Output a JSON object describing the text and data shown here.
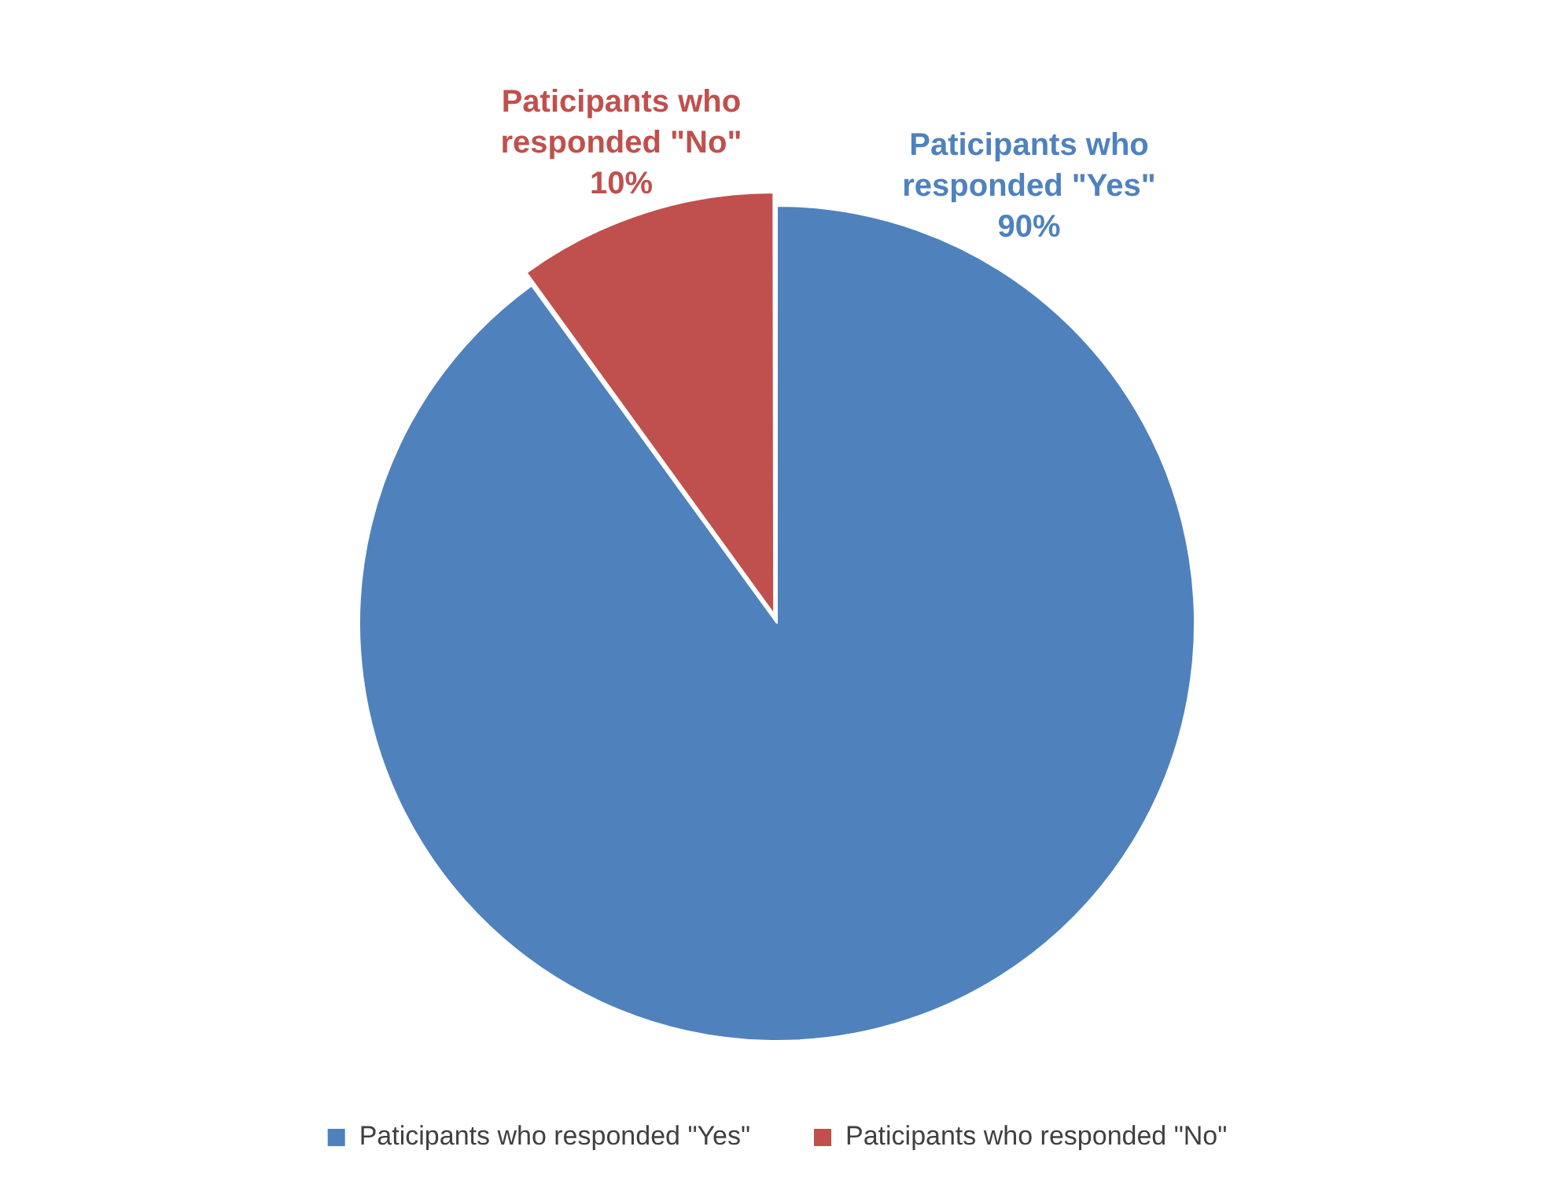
{
  "chart_data": {
    "type": "pie",
    "categories": [
      "Paticipants who responded \"Yes\"",
      "Paticipants who responded \"No\""
    ],
    "values": [
      90,
      10
    ],
    "colors": [
      "#4f81bd",
      "#c0504d"
    ],
    "value_labels": [
      "90%",
      "10%"
    ],
    "legend": "bottom"
  }
}
